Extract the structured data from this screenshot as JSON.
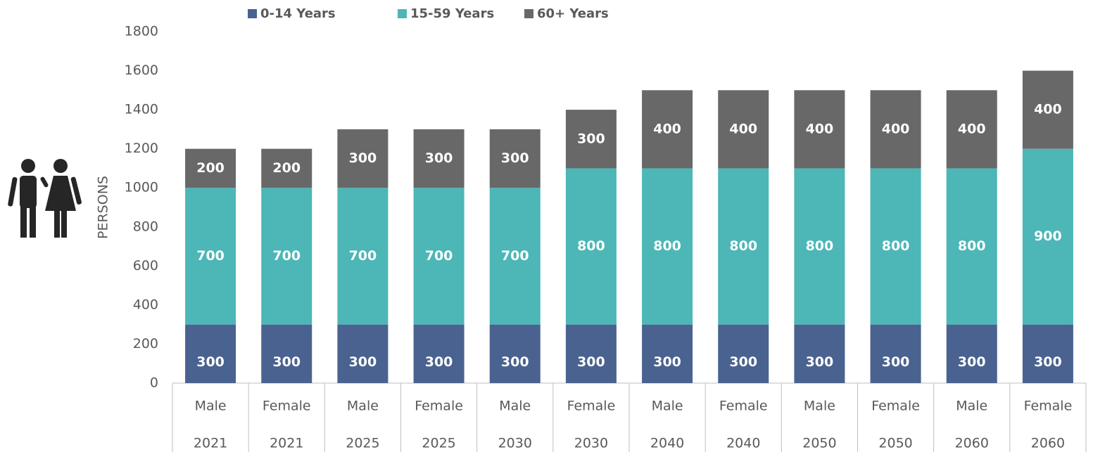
{
  "chart_data": {
    "type": "stacked_bar",
    "axis_label": "PERSONS",
    "categories": [
      [
        "Male",
        "2021"
      ],
      [
        "Female",
        "2021"
      ],
      [
        "Male",
        "2025"
      ],
      [
        "Female",
        "2025"
      ],
      [
        "Male",
        "2030"
      ],
      [
        "Female",
        "2030"
      ],
      [
        "Male",
        "2040"
      ],
      [
        "Female",
        "2040"
      ],
      [
        "Male",
        "2050"
      ],
      [
        "Female",
        "2050"
      ],
      [
        "Male",
        "2060"
      ],
      [
        "Female",
        "2060"
      ]
    ],
    "series": [
      {
        "name": "0-14 Years",
        "color": "#4a628f",
        "values": [
          300,
          300,
          300,
          300,
          300,
          300,
          300,
          300,
          300,
          300,
          300,
          300
        ]
      },
      {
        "name": "15-59 Years",
        "color": "#4db6b6",
        "values": [
          700,
          700,
          700,
          700,
          700,
          800,
          800,
          800,
          800,
          800,
          800,
          900
        ]
      },
      {
        "name": "60+ Years",
        "color": "#686868",
        "values": [
          200,
          200,
          300,
          300,
          300,
          300,
          400,
          400,
          400,
          400,
          400,
          400
        ]
      }
    ],
    "ylim": [
      0,
      1800
    ],
    "yticks": [
      0,
      200,
      400,
      600,
      800,
      1000,
      1200,
      1400,
      1600,
      1800
    ],
    "legend": "top"
  }
}
